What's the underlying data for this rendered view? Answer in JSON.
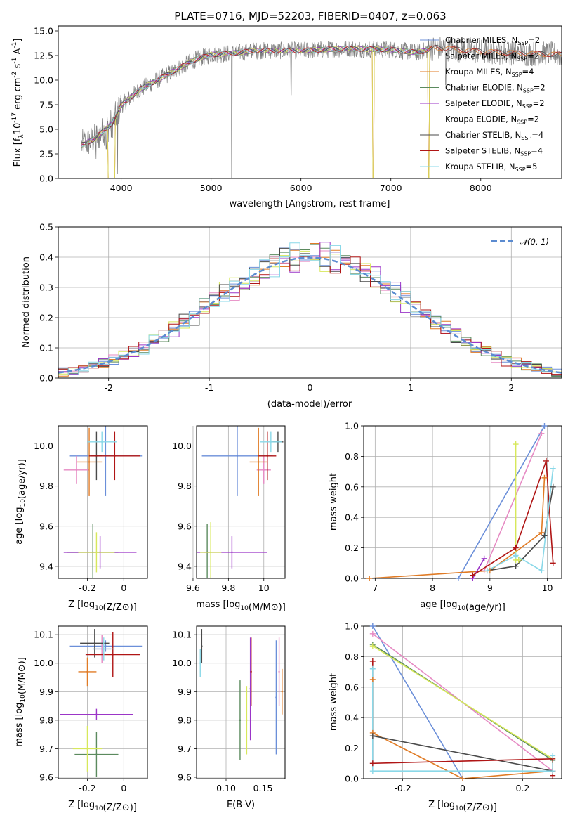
{
  "figure_title": "PLATE=0716, MJD=52203, FIBERID=0407, z=0.063",
  "legend": [
    {
      "name": "Chabrier MILES, N$_{SSP}$=2",
      "label": "Chabrier MILES, N",
      "sub": "SSP",
      "tail": "=2",
      "color": "#6b8fd9"
    },
    {
      "name": "Salpeter MILES, N$_{SSP}$=2",
      "label": "Salpeter MILES, N",
      "sub": "SSP",
      "tail": "=2",
      "color": "#e68ac3"
    },
    {
      "name": "Kroupa MILES, N$_{SSP}$=4",
      "label": "Kroupa MILES, N",
      "sub": "SSP",
      "tail": "=4",
      "color": "#e07b25"
    },
    {
      "name": "Chabrier ELODIE, N$_{SSP}$=2",
      "label": "Chabrier ELODIE, N",
      "sub": "SSP",
      "tail": "=2",
      "color": "#5b8a5e"
    },
    {
      "name": "Salpeter ELODIE, N$_{SSP}$=2",
      "label": "Salpeter ELODIE, N",
      "sub": "SSP",
      "tail": "=2",
      "color": "#9b35c7"
    },
    {
      "name": "Kroupa ELODIE, N$_{SSP}$=2",
      "label": "Kroupa ELODIE, N",
      "sub": "SSP",
      "tail": "=2",
      "color": "#d7e85b"
    },
    {
      "name": "Chabrier STELIB, N$_{SSP}$=4",
      "label": "Chabrier STELIB, N",
      "sub": "SSP",
      "tail": "=4",
      "color": "#4a4a4a"
    },
    {
      "name": "Salpeter STELIB, N$_{SSP}$=4",
      "label": "Salpeter STELIB, N",
      "sub": "SSP",
      "tail": "=4",
      "color": "#b01515"
    },
    {
      "name": "Kroupa STELIB, N$_{SSP}$=5",
      "label": "Kroupa STELIB, N",
      "sub": "SSP",
      "tail": "=5",
      "color": "#8ad8e8"
    }
  ],
  "chart_data": [
    {
      "id": "spectrum",
      "type": "line",
      "title": "PLATE=0716, MJD=52203, FIBERID=0407, z=0.063",
      "xlabel": "wavelength [Angstrom, rest frame]",
      "ylabel_parts": [
        "Flux [f",
        "λ",
        "10",
        "-17",
        " erg cm",
        "-2",
        " s",
        "-1",
        " A",
        "-1",
        "]"
      ],
      "xlim": [
        3300,
        8900
      ],
      "ylim": [
        0,
        15.5
      ],
      "xticks": [
        4000,
        5000,
        6000,
        7000,
        8000
      ],
      "yticks": [
        0.0,
        2.5,
        5.0,
        7.5,
        10.0,
        12.5,
        15.0
      ],
      "ytick_labels": [
        "0.0",
        "2.5",
        "5.0",
        "7.5",
        "10.0",
        "12.5",
        "15.0"
      ],
      "grid": false,
      "legend_position": "right",
      "observed": {
        "color": "#808080",
        "x_range": [
          3560,
          8900
        ],
        "continuum": [
          [
            3560,
            3.4
          ],
          [
            3700,
            4.0
          ],
          [
            3900,
            5.6
          ],
          [
            4000,
            7.4
          ],
          [
            4200,
            9.0
          ],
          [
            4400,
            10.0
          ],
          [
            4600,
            11.0
          ],
          [
            4800,
            12.0
          ],
          [
            5000,
            12.6
          ],
          [
            5200,
            12.7
          ],
          [
            5500,
            13.0
          ],
          [
            6000,
            13.0
          ],
          [
            6500,
            13.2
          ],
          [
            7000,
            13.1
          ],
          [
            7300,
            12.8
          ],
          [
            7500,
            13.3
          ],
          [
            8000,
            12.9
          ],
          [
            8500,
            12.7
          ],
          [
            8900,
            12.6
          ]
        ],
        "deep_dips": [
          [
            3720,
            2.0
          ],
          [
            3834,
            3.0
          ],
          [
            3889,
            4.2
          ],
          [
            3960,
            0.5
          ],
          [
            5230,
            0
          ],
          [
            5890,
            8.5
          ],
          [
            7610,
            9.5
          ]
        ]
      },
      "model_dropouts": [
        [
          3850,
          3930
        ],
        [
          6800,
          6810
        ],
        [
          7410,
          7430
        ]
      ]
    },
    {
      "id": "residuals",
      "type": "bar",
      "xlabel": "(data-model)/error",
      "ylabel": "Normed distribution",
      "xlim": [
        -2.5,
        2.5
      ],
      "ylim": [
        0,
        0.5
      ],
      "xticks": [
        -2,
        -1,
        0,
        1,
        2
      ],
      "yticks": [
        0.0,
        0.1,
        0.2,
        0.3,
        0.4,
        0.5
      ],
      "ytick_labels": [
        "0.0",
        "0.1",
        "0.2",
        "0.3",
        "0.4",
        "0.5"
      ],
      "grid": true,
      "legend": "𝒩(0, 1)",
      "legend_position": "top-right",
      "reference_curve": {
        "name": "𝒩(0, 1)",
        "type": "gaussian",
        "mu": 0,
        "sigma": 1,
        "color": "#5b8bd0"
      },
      "bin_width": 0.1
    },
    {
      "id": "age-vs-Z",
      "type": "scatter",
      "xlabel": "Z [log10(Z/Z⊙)]",
      "ylabel": "age [log10(age/yr)]",
      "xlim": [
        -0.36,
        0.13
      ],
      "ylim": [
        9.34,
        10.1
      ],
      "xticks": [
        -0.2,
        0.0
      ],
      "yticks": [
        9.4,
        9.6,
        9.8,
        10.0
      ],
      "grid": true,
      "points": [
        {
          "series": 0,
          "x": -0.1,
          "y": 9.95,
          "xerr": 0.2,
          "yerr": 0.2
        },
        {
          "series": 1,
          "x": -0.26,
          "y": 9.88,
          "xerr": 0.07,
          "yerr": 0.07
        },
        {
          "series": 2,
          "x": -0.19,
          "y": 9.92,
          "xerr": 0.07,
          "yerr": 0.17
        },
        {
          "series": 3,
          "x": -0.17,
          "y": 9.47,
          "xerr": 0.14,
          "yerr": 0.14
        },
        {
          "series": 4,
          "x": -0.13,
          "y": 9.47,
          "xerr": 0.2,
          "yerr": 0.08
        },
        {
          "series": 5,
          "x": -0.15,
          "y": 9.47,
          "xerr": 0.1,
          "yerr": 0.1
        },
        {
          "series": 6,
          "x": -0.15,
          "y": 9.95,
          "xerr": 0.03,
          "yerr": 0.12
        },
        {
          "series": 7,
          "x": -0.05,
          "y": 9.95,
          "xerr": 0.14,
          "yerr": 0.12
        },
        {
          "series": 8,
          "x": -0.12,
          "y": 10.02,
          "xerr": 0.08,
          "yerr": 0.05
        }
      ]
    },
    {
      "id": "age-vs-mass",
      "type": "scatter",
      "xlabel": "mass [log10(M/M⊙)]",
      "ylabel": "",
      "xlim": [
        9.62,
        10.12
      ],
      "ylim": [
        9.34,
        10.1
      ],
      "xticks": [
        9.6,
        9.8,
        10.0
      ],
      "yticks": [
        9.4,
        9.6,
        9.8,
        10.0
      ],
      "grid": true,
      "points": [
        {
          "series": 0,
          "x": 9.85,
          "y": 9.95,
          "xerr": 0.2,
          "yerr": 0.2
        },
        {
          "series": 1,
          "x": 10.0,
          "y": 9.88,
          "xerr": 0.04,
          "yerr": 0.07
        },
        {
          "series": 2,
          "x": 9.97,
          "y": 9.92,
          "xerr": 0.05,
          "yerr": 0.17
        },
        {
          "series": 3,
          "x": 9.68,
          "y": 9.47,
          "xerr": 0.02,
          "yerr": 0.14
        },
        {
          "series": 4,
          "x": 9.82,
          "y": 9.47,
          "xerr": 0.2,
          "yerr": 0.08
        },
        {
          "series": 5,
          "x": 9.7,
          "y": 9.47,
          "xerr": 0.06,
          "yerr": 0.15
        },
        {
          "series": 6,
          "x": 10.08,
          "y": 10.02,
          "xerr": 0.03,
          "yerr": 0.05
        },
        {
          "series": 7,
          "x": 10.02,
          "y": 9.95,
          "xerr": 0.05,
          "yerr": 0.12
        },
        {
          "series": 8,
          "x": 10.04,
          "y": 10.02,
          "xerr": 0.06,
          "yerr": 0.05
        }
      ]
    },
    {
      "id": "weight-vs-age",
      "type": "line",
      "xlabel": "age [log10(age/yr)]",
      "ylabel": "mass weight",
      "xlim": [
        6.8,
        10.25
      ],
      "ylim": [
        0,
        1
      ],
      "xticks": [
        7,
        8,
        9,
        10
      ],
      "yticks": [
        0.0,
        0.2,
        0.4,
        0.6,
        0.8,
        1.0
      ],
      "ytick_labels": [
        "0.0",
        "0.2",
        "0.4",
        "0.6",
        "0.8",
        "1.0"
      ],
      "grid": true,
      "series": [
        {
          "series": 0,
          "points": [
            [
              8.45,
              0.0
            ],
            [
              9.95,
              1.0
            ]
          ]
        },
        {
          "series": 1,
          "points": [
            [
              8.9,
              0.05
            ],
            [
              9.9,
              0.95
            ]
          ]
        },
        {
          "series": 2,
          "points": [
            [
              6.9,
              0.0
            ],
            [
              9.0,
              0.05
            ],
            [
              9.9,
              0.3
            ],
            [
              9.95,
              0.66
            ]
          ]
        },
        {
          "series": 4,
          "points": [
            [
              8.7,
              0.0
            ],
            [
              8.9,
              0.13
            ]
          ]
        },
        {
          "series": 5,
          "points": [
            [
              9.45,
              0.88
            ],
            [
              9.45,
              0.12
            ],
            [
              9.5,
              0.12
            ]
          ]
        },
        {
          "series": 6,
          "points": [
            [
              8.95,
              0.05
            ],
            [
              9.45,
              0.08
            ],
            [
              9.95,
              0.28
            ],
            [
              10.1,
              0.6
            ]
          ]
        },
        {
          "series": 7,
          "points": [
            [
              8.7,
              0.02
            ],
            [
              9.45,
              0.2
            ],
            [
              9.98,
              0.77
            ],
            [
              10.1,
              0.1
            ]
          ]
        },
        {
          "series": 8,
          "points": [
            [
              8.95,
              0.05
            ],
            [
              9.45,
              0.15
            ],
            [
              9.9,
              0.05
            ],
            [
              10.1,
              0.72
            ]
          ]
        }
      ]
    },
    {
      "id": "mass-vs-Z",
      "type": "scatter",
      "xlabel": "Z [log10(Z/Z⊙)]",
      "ylabel": "mass [log10(M/M⊙)]",
      "xlim": [
        -0.36,
        0.13
      ],
      "ylim": [
        9.595,
        10.13
      ],
      "xticks": [
        -0.2,
        0.0
      ],
      "yticks": [
        9.6,
        9.7,
        9.8,
        9.9,
        10.0,
        10.1
      ],
      "grid": true,
      "points": [
        {
          "series": 0,
          "x": -0.1,
          "y": 10.06,
          "xerr": 0.2,
          "yerr": 0.02
        },
        {
          "series": 1,
          "x": -0.12,
          "y": 10.05,
          "xerr": 0.05,
          "yerr": 0.05
        },
        {
          "series": 2,
          "x": -0.2,
          "y": 9.97,
          "xerr": 0.05,
          "yerr": 0.05
        },
        {
          "series": 3,
          "x": -0.15,
          "y": 9.68,
          "xerr": 0.12,
          "yerr": 0.08
        },
        {
          "series": 4,
          "x": -0.15,
          "y": 9.82,
          "xerr": 0.2,
          "yerr": 0.02
        },
        {
          "series": 5,
          "x": -0.2,
          "y": 9.7,
          "xerr": 0.08,
          "yerr": 0.08
        },
        {
          "series": 6,
          "x": -0.16,
          "y": 10.07,
          "xerr": 0.08,
          "yerr": 0.05
        },
        {
          "series": 7,
          "x": -0.06,
          "y": 10.03,
          "xerr": 0.15,
          "yerr": 0.08
        },
        {
          "series": 8,
          "x": -0.11,
          "y": 10.05,
          "xerr": 0.06,
          "yerr": 0.04
        }
      ]
    },
    {
      "id": "mass-vs-EBV",
      "type": "scatter",
      "xlabel": "E(B-V)",
      "ylabel": "",
      "xlim": [
        0.06,
        0.18
      ],
      "ylim": [
        9.595,
        10.13
      ],
      "xticks": [
        0.1,
        0.15
      ],
      "xtick_labels": [
        "0.10",
        "0.15"
      ],
      "yticks": [
        9.6,
        9.7,
        9.8,
        9.9,
        10.0,
        10.1
      ],
      "grid": true,
      "points": [
        {
          "series": 0,
          "x": 0.168,
          "y": 9.88,
          "yerr": 0.2
        },
        {
          "series": 1,
          "x": 0.172,
          "y": 9.97,
          "yerr": 0.12
        },
        {
          "series": 2,
          "x": 0.176,
          "y": 9.9,
          "yerr": 0.08
        },
        {
          "series": 3,
          "x": 0.119,
          "y": 9.8,
          "yerr": 0.14
        },
        {
          "series": 4,
          "x": 0.133,
          "y": 9.91,
          "yerr": 0.18
        },
        {
          "series": 5,
          "x": 0.128,
          "y": 9.8,
          "yerr": 0.12
        },
        {
          "series": 6,
          "x": 0.067,
          "y": 10.06,
          "yerr": 0.06
        },
        {
          "series": 7,
          "x": 0.134,
          "y": 9.97,
          "yerr": 0.12
        },
        {
          "series": 8,
          "x": 0.065,
          "y": 10.0,
          "yerr": 0.05
        }
      ]
    },
    {
      "id": "weight-vs-Z",
      "type": "line",
      "xlabel": "Z [log10(Z/Z⊙)]",
      "ylabel": "mass weight",
      "xlim": [
        -0.33,
        0.33
      ],
      "ylim": [
        0,
        1
      ],
      "xticks": [
        -0.2,
        0.0,
        0.2
      ],
      "yticks": [
        0.0,
        0.2,
        0.4,
        0.6,
        0.8,
        1.0
      ],
      "ytick_labels": [
        "0.0",
        "0.2",
        "0.4",
        "0.6",
        "0.8",
        "1.0"
      ],
      "grid": true,
      "series": [
        {
          "series": 0,
          "points": [
            [
              -0.3,
              1.0
            ],
            [
              0.0,
              0.0
            ]
          ]
        },
        {
          "series": 1,
          "points": [
            [
              -0.3,
              0.95
            ],
            [
              0.3,
              0.05
            ]
          ]
        },
        {
          "series": 2,
          "points": [
            [
              -0.3,
              0.65
            ],
            [
              -0.3,
              0.3
            ],
            [
              0.0,
              0.0
            ],
            [
              0.3,
              0.05
            ]
          ]
        },
        {
          "series": 3,
          "points": [
            [
              -0.3,
              0.88
            ],
            [
              0.3,
              0.12
            ]
          ]
        },
        {
          "series": 5,
          "points": [
            [
              -0.3,
              0.87
            ],
            [
              0.3,
              0.13
            ]
          ]
        },
        {
          "series": 6,
          "points": [
            [
              -0.3,
              0.28
            ],
            [
              0.3,
              0.05
            ]
          ]
        },
        {
          "series": 7,
          "points": [
            [
              -0.3,
              0.77
            ],
            [
              -0.3,
              0.1
            ],
            [
              0.3,
              0.13
            ],
            [
              0.3,
              0.02
            ]
          ]
        },
        {
          "series": 8,
          "points": [
            [
              -0.3,
              0.72
            ],
            [
              -0.3,
              0.05
            ],
            [
              0.3,
              0.05
            ],
            [
              0.3,
              0.15
            ]
          ]
        }
      ]
    }
  ]
}
